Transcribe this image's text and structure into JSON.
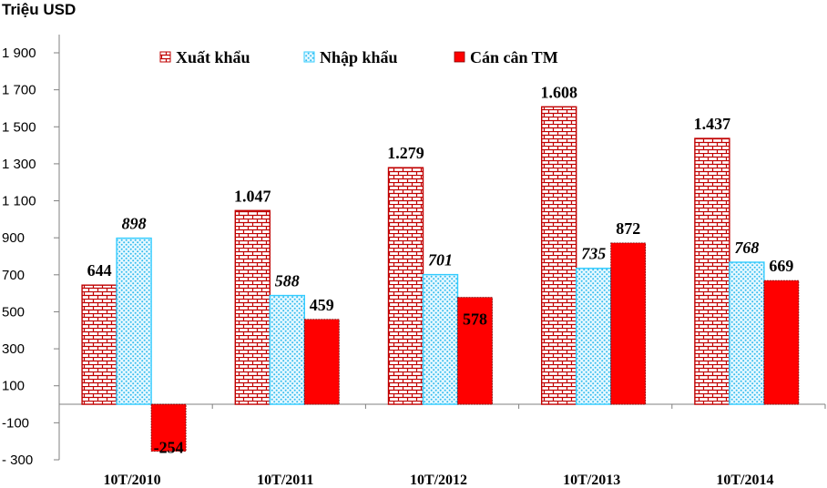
{
  "chart_data": {
    "type": "bar",
    "ylabel": "Triệu USD",
    "xlabel": "",
    "ylim": [
      -300,
      2000
    ],
    "yticks": [
      -300,
      -100,
      100,
      300,
      500,
      700,
      900,
      1100,
      1300,
      1500,
      1700,
      1900
    ],
    "ytick_labels": [
      "- 300",
      "-100",
      "100",
      "300",
      "500",
      "700",
      "900",
      "1 100",
      "1 300",
      "1 500",
      "1 700",
      "1 900"
    ],
    "categories": [
      "10T/2010",
      "10T/2011",
      "10T/2012",
      "10T/2013",
      "10T/2014"
    ],
    "series": [
      {
        "name": "Xuất khẩu",
        "values": [
          644,
          1047,
          1279,
          1608,
          1437
        ],
        "labels": [
          "644",
          "1.047",
          "1.279",
          "1.608",
          "1.437"
        ],
        "color": "#c00000",
        "pattern": "brick"
      },
      {
        "name": "Nhập khẩu",
        "values": [
          898,
          588,
          701,
          735,
          768
        ],
        "labels": [
          "898",
          "588",
          "701",
          "735",
          "768"
        ],
        "color": "#33ccff",
        "pattern": "dots"
      },
      {
        "name": "Cán cân TM",
        "values": [
          -254,
          459,
          578,
          872,
          669
        ],
        "labels": [
          "-254",
          "459",
          "578",
          "872",
          "669"
        ],
        "color": "#ff0000",
        "pattern": "solid"
      }
    ],
    "legend": "top",
    "grid": false
  }
}
